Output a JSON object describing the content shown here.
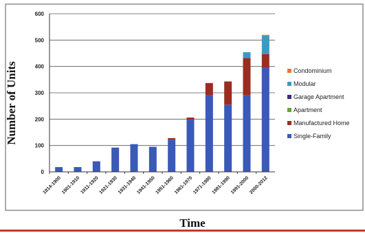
{
  "chart_data": {
    "type": "bar",
    "stacked": true,
    "title": "",
    "xlabel": "Time",
    "ylabel": "Number of Units",
    "ylim": [
      0,
      600
    ],
    "yticks": [
      0,
      100,
      200,
      300,
      400,
      500,
      600
    ],
    "grid": true,
    "legend_position": "right",
    "categories": [
      "1814-1900",
      "1901-1910",
      "1911-1920",
      "1921-1930",
      "1931-1940",
      "1941-1950",
      "1951-1960",
      "1961-1970",
      "1971-1980",
      "1981-1990",
      "1991-2000",
      "2000-2012"
    ],
    "series": [
      {
        "name": "Single-Family",
        "color": "#3a59b8",
        "values": [
          18,
          18,
          40,
          92,
          105,
          95,
          122,
          198,
          292,
          255,
          290,
          395
        ]
      },
      {
        "name": "Manufactured Home",
        "color": "#9b2d20",
        "values": [
          0,
          0,
          0,
          0,
          0,
          0,
          6,
          8,
          45,
          88,
          142,
          52
        ]
      },
      {
        "name": "Apartment",
        "color": "#6aa33a",
        "values": [
          0,
          0,
          0,
          0,
          0,
          0,
          0,
          0,
          0,
          0,
          0,
          0
        ]
      },
      {
        "name": "Garage Apartment",
        "color": "#3a2d7a",
        "values": [
          0,
          0,
          0,
          0,
          0,
          0,
          0,
          0,
          0,
          0,
          0,
          0
        ]
      },
      {
        "name": "Modular",
        "color": "#3a9bc0",
        "values": [
          0,
          0,
          0,
          0,
          0,
          0,
          0,
          0,
          0,
          0,
          22,
          70
        ]
      },
      {
        "name": "Condominium",
        "color": "#e07a3a",
        "values": [
          0,
          0,
          0,
          0,
          0,
          0,
          0,
          0,
          0,
          0,
          0,
          3
        ]
      }
    ],
    "legend_order": [
      "Condominium",
      "Modular",
      "Garage Apartment",
      "Apartment",
      "Manufactured Home",
      "Single-Family"
    ]
  }
}
